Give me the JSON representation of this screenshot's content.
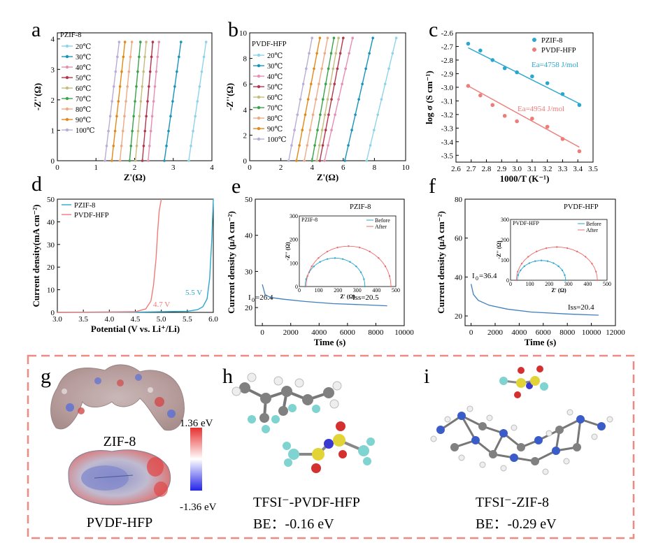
{
  "panel_labels": [
    "a",
    "b",
    "c",
    "d",
    "e",
    "f",
    "g",
    "h",
    "i"
  ],
  "colors": {
    "c20": "#8fd3ea",
    "c30": "#1993b9",
    "c40": "#e48fb3",
    "c50": "#b3364d",
    "c60": "#c4bd7e",
    "c70": "#3aa34b",
    "c80": "#ecab85",
    "c90": "#e08a1a",
    "c100": "#b9acd6",
    "pzif": "#2aa7cc",
    "pvdf": "#ee7c78",
    "blue_line": "#3e7fbf",
    "red_line": "#ee6b6b",
    "dash_border": "#ee8a84"
  },
  "chart_data": [
    {
      "id": "a",
      "type": "line",
      "title": "PZIF-8",
      "xlabel": "Z'(Ω)",
      "ylabel": "-Z''(Ω)",
      "xlim": [
        0,
        4
      ],
      "ylim": [
        0,
        4.2
      ],
      "xticks": [
        "0",
        "1",
        "2",
        "3",
        "4"
      ],
      "yticks": [
        "0",
        "1",
        "2",
        "3",
        "4"
      ],
      "series": [
        {
          "name": "20℃",
          "x": [
            3.4,
            3.85
          ],
          "y": [
            0,
            3.9
          ]
        },
        {
          "name": "30℃",
          "x": [
            2.77,
            3.2
          ],
          "y": [
            0,
            3.9
          ]
        },
        {
          "name": "40℃",
          "x": [
            2.35,
            2.63
          ],
          "y": [
            0,
            3.9
          ]
        },
        {
          "name": "50℃",
          "x": [
            2.2,
            2.47
          ],
          "y": [
            0,
            3.9
          ]
        },
        {
          "name": "60℃",
          "x": [
            2.02,
            2.3
          ],
          "y": [
            0,
            3.9
          ]
        },
        {
          "name": "70℃",
          "x": [
            1.87,
            2.15
          ],
          "y": [
            0,
            3.9
          ]
        },
        {
          "name": "80℃",
          "x": [
            1.62,
            1.93
          ],
          "y": [
            0,
            3.9
          ]
        },
        {
          "name": "90℃",
          "x": [
            1.41,
            1.75
          ],
          "y": [
            0,
            3.9
          ]
        },
        {
          "name": "100℃",
          "x": [
            1.23,
            1.6
          ],
          "y": [
            0,
            3.9
          ]
        }
      ]
    },
    {
      "id": "b",
      "type": "line",
      "title": "PVDF-HFP",
      "xlabel": "Z'(Ω)",
      "ylabel": "-Z''(Ω)",
      "xlim": [
        0,
        10
      ],
      "ylim": [
        0,
        10
      ],
      "xticks": [
        "0",
        "2",
        "4",
        "6",
        "8",
        "10"
      ],
      "yticks": [
        "0",
        "2",
        "4",
        "6",
        "8",
        "10"
      ],
      "series": [
        {
          "name": "20℃",
          "x": [
            7.5,
            9.4
          ],
          "y": [
            0,
            9.6
          ]
        },
        {
          "name": "30℃",
          "x": [
            6.1,
            7.9
          ],
          "y": [
            0,
            9.6
          ]
        },
        {
          "name": "40℃",
          "x": [
            4.8,
            6.6
          ],
          "y": [
            0,
            9.6
          ]
        },
        {
          "name": "50℃",
          "x": [
            4.5,
            6.0
          ],
          "y": [
            0,
            9.6
          ]
        },
        {
          "name": "60℃",
          "x": [
            4.3,
            5.7
          ],
          "y": [
            0,
            9.6
          ]
        },
        {
          "name": "70℃",
          "x": [
            4.0,
            5.4
          ],
          "y": [
            0,
            9.6
          ]
        },
        {
          "name": "80℃",
          "x": [
            3.5,
            5.0
          ],
          "y": [
            0,
            9.6
          ]
        },
        {
          "name": "90℃",
          "x": [
            3.0,
            4.5
          ],
          "y": [
            0,
            9.6
          ]
        },
        {
          "name": "100℃",
          "x": [
            2.5,
            4.0
          ],
          "y": [
            0,
            9.6
          ]
        }
      ]
    },
    {
      "id": "c",
      "type": "scatter",
      "xlabel": "1000/T (K⁻¹)",
      "ylabel": "log σ (S cm⁻¹)",
      "xlim": [
        2.6,
        3.5
      ],
      "ylim": [
        -3.55,
        -2.6
      ],
      "xticks": [
        "2.6",
        "2.7",
        "2.8",
        "2.9",
        "3.0",
        "3.1",
        "3.2",
        "3.3",
        "3.4",
        "3.5"
      ],
      "yticks": [
        "-2.6",
        "-2.7",
        "-2.8",
        "-2.9",
        "-3.0",
        "-3.1",
        "-3.2",
        "-3.3",
        "-3.4",
        "-3.5"
      ],
      "series": [
        {
          "name": "PZIF-8",
          "x": [
            2.68,
            2.76,
            2.84,
            2.92,
            3.0,
            3.1,
            3.2,
            3.3,
            3.41
          ],
          "y": [
            -2.68,
            -2.73,
            -2.8,
            -2.86,
            -2.89,
            -2.92,
            -2.97,
            -3.05,
            -3.13
          ],
          "fit": {
            "x": [
              2.68,
              3.41
            ],
            "y": [
              -2.71,
              -3.12
            ]
          }
        },
        {
          "name": "PVDF-HFP",
          "x": [
            2.68,
            2.76,
            2.84,
            2.92,
            3.0,
            3.1,
            3.2,
            3.3,
            3.41
          ],
          "y": [
            -2.99,
            -3.06,
            -3.13,
            -3.21,
            -3.25,
            -3.23,
            -3.29,
            -3.38,
            -3.47
          ],
          "fit": {
            "x": [
              2.68,
              3.41
            ],
            "y": [
              -2.99,
              -3.44
            ]
          }
        }
      ],
      "annotations": [
        "Ea=4758 J/mol",
        "Ea=4954 J/mol"
      ]
    },
    {
      "id": "d",
      "type": "line",
      "xlabel": "Potential (V vs. Li⁺/Li)",
      "ylabel": "Current density(mA cm⁻²)",
      "xlim": [
        3.0,
        6.0
      ],
      "ylim": [
        0,
        50
      ],
      "xticks": [
        "3.0",
        "3.5",
        "4.0",
        "4.5",
        "5.0",
        "5.5",
        "6.0"
      ],
      "yticks": [
        "0",
        "10",
        "20",
        "30",
        "40",
        "50"
      ],
      "series": [
        {
          "name": "PZIF-8",
          "x": [
            3.0,
            4.5,
            5.5,
            5.7,
            5.8,
            5.88,
            5.93,
            5.97,
            6.0
          ],
          "y": [
            0,
            0.1,
            0.5,
            1.2,
            2.5,
            6,
            15,
            32,
            50
          ]
        },
        {
          "name": "PVDF-HFP",
          "x": [
            3.0,
            4.5,
            4.7,
            4.8,
            4.85,
            4.9,
            4.93,
            4.96,
            5.0
          ],
          "y": [
            0,
            0.3,
            1.5,
            5,
            12,
            24,
            36,
            45,
            50
          ]
        }
      ],
      "annotations": [
        "5.5 V",
        "4.7 V"
      ]
    },
    {
      "id": "e",
      "type": "line",
      "title": "PZIF-8",
      "xlabel": "Time (s)",
      "ylabel": "Current density (μA cm⁻²)",
      "xlim": [
        -500,
        10000
      ],
      "ylim": [
        15,
        50
      ],
      "xticks": [
        "0",
        "2000",
        "4000",
        "6000",
        "8000",
        "10000"
      ],
      "yticks": [
        "20",
        "30",
        "40",
        "50"
      ],
      "series": [
        {
          "name": "PZIF-8",
          "x": [
            0,
            200,
            600,
            1500,
            3000,
            5000,
            7000,
            8800
          ],
          "y": [
            26.4,
            23.5,
            22.8,
            22.3,
            21.7,
            21.1,
            20.8,
            20.5
          ]
        }
      ],
      "annotations": [
        "I",
        "0",
        "=26.4",
        "Iss=20.5"
      ],
      "inset": {
        "title": "PZIF-8",
        "xlabel": "Z' (Ω)",
        "ylabel": "-Z'' (Ω)",
        "xlim": [
          0,
          500
        ],
        "ylim": [
          0,
          300
        ],
        "xticks": [
          "0",
          "100",
          "200",
          "300",
          "400",
          "500"
        ],
        "yticks": [
          "0",
          "100",
          "200",
          "300"
        ],
        "series": [
          {
            "name": "Before",
            "center": 185,
            "radius": 155
          },
          {
            "name": "After",
            "center": 255,
            "radius": 220
          }
        ]
      }
    },
    {
      "id": "f",
      "type": "line",
      "title": "PVDF-HFP",
      "xlabel": "Time (s)",
      "ylabel": "Current density (μA cm⁻²)",
      "xlim": [
        -500,
        12000
      ],
      "ylim": [
        15,
        80
      ],
      "xticks": [
        "0",
        "2000",
        "4000",
        "6000",
        "8000",
        "10000",
        "12000"
      ],
      "yticks": [
        "20",
        "40",
        "60",
        "80"
      ],
      "series": [
        {
          "name": "PVDF-HFP",
          "x": [
            0,
            200,
            600,
            1500,
            3000,
            5000,
            8000,
            10600
          ],
          "y": [
            36.4,
            31,
            28,
            25.5,
            23.5,
            22,
            21,
            20.4
          ]
        }
      ],
      "annotations": [
        "I",
        "0",
        "=36.4",
        "Iss=20.4"
      ],
      "inset": {
        "title": "PVDF-HFP",
        "xlabel": "Z' (Ω)",
        "ylabel": "-Z'' (Ω)",
        "xlim": [
          0,
          500
        ],
        "ylim": [
          0,
          300
        ],
        "xticks": [
          "0",
          "100",
          "200",
          "300",
          "400",
          "500"
        ],
        "yticks": [
          "0",
          "100",
          "200",
          "300"
        ],
        "series": [
          {
            "name": "Before",
            "center": 160,
            "radius": 125
          },
          {
            "name": "After",
            "center": 240,
            "radius": 210
          }
        ]
      }
    }
  ],
  "g": {
    "top_label": "ZIF-8",
    "bottom_label": "PVDF-HFP",
    "scale_max": "1.36 eV",
    "scale_min": "-1.36 eV"
  },
  "h": {
    "title": "TFSI⁻-PVDF-HFP",
    "be": "BE：-0.16 eV"
  },
  "i": {
    "title": "TFSI⁻-ZIF-8",
    "be": "BE：-0.29 eV"
  }
}
